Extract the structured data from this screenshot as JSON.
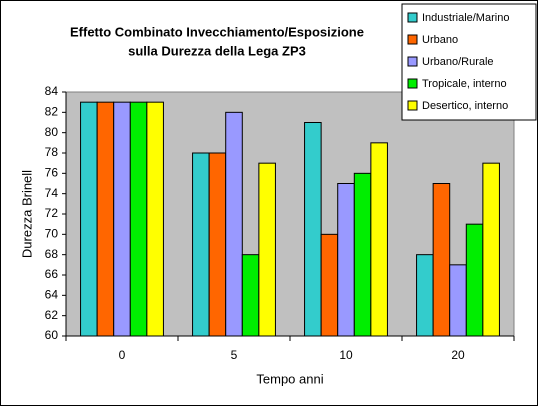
{
  "chart_data": {
    "type": "bar",
    "title": [
      "Effetto Combinato Invecchiamento/Esposizione",
      "sulla Durezza della Lega ZP3"
    ],
    "x_label": "Tempo anni",
    "y_label": "Durezza Brinell",
    "categories": [
      "0",
      "5",
      "10",
      "20"
    ],
    "series": [
      {
        "name": "Industriale/Marino",
        "color": "#33cccc",
        "values": [
          83,
          78,
          81,
          68
        ]
      },
      {
        "name": "Urbano",
        "color": "#ff6600",
        "values": [
          83,
          78,
          70,
          75
        ]
      },
      {
        "name": "Urbano/Rurale",
        "color": "#9999ff",
        "values": [
          83,
          82,
          75,
          67
        ]
      },
      {
        "name": "Tropicale, interno",
        "color": "#00ee00",
        "values": [
          83,
          68,
          76,
          71
        ]
      },
      {
        "name": "Desertico, interno",
        "color": "#ffff00",
        "values": [
          83,
          77,
          79,
          77
        ]
      }
    ],
    "ylim": [
      60,
      84
    ],
    "yticks": [
      60,
      62,
      64,
      66,
      68,
      70,
      72,
      74,
      76,
      78,
      80,
      82,
      84
    ],
    "legend": "top-right",
    "plot_background": "#c0c0c0"
  }
}
